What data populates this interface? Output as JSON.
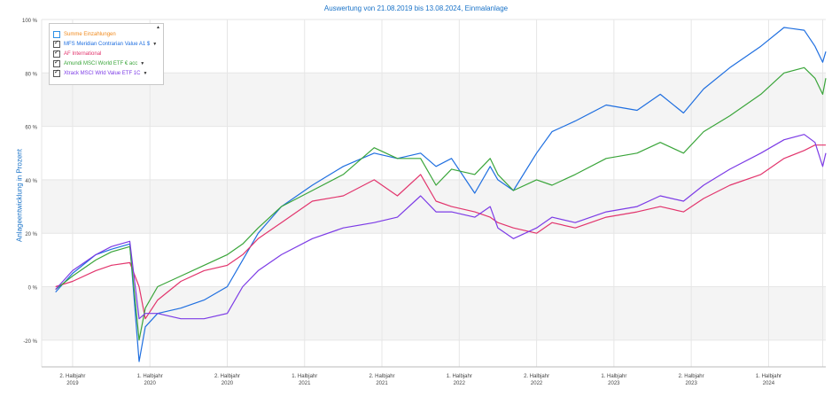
{
  "title": "Auswertung von 21.08.2019 bis 13.08.2024, Einmalanlage",
  "colors": {
    "blue": "#1f6fe0",
    "green": "#3aa53a",
    "pink": "#e2356d",
    "purple": "#7c3be6",
    "orange": "#f08a1c",
    "grid": "#e6e6e6",
    "band": "#f4f4f4"
  },
  "legend": [
    {
      "label": "Summe Einzahlungen",
      "checked": false,
      "dropdown": false,
      "color": "#f08a1c"
    },
    {
      "label": "MFS Meridian Contrarian Value A1 $",
      "checked": true,
      "dropdown": true,
      "color": "#1f6fe0"
    },
    {
      "label": "AF International",
      "checked": true,
      "dropdown": false,
      "color": "#e2356d"
    },
    {
      "label": "Amundi MSCI World ETF € acc",
      "checked": true,
      "dropdown": true,
      "color": "#3aa53a"
    },
    {
      "label": "Xtrack MSCI Wrld Value ETF 1C",
      "checked": true,
      "dropdown": true,
      "color": "#7c3be6"
    }
  ],
  "chart_data": {
    "type": "line",
    "title": "Auswertung von 21.08.2019 bis 13.08.2024, Einmalanlage",
    "xlabel": "",
    "ylabel": "Anlageentwicklung in Prozent",
    "ylim": [
      -30,
      100
    ],
    "yticks": [
      "100 %",
      "80 %",
      "60 %",
      "40 %",
      "20 %",
      "0 %",
      "-20 %"
    ],
    "ytick_values": [
      100,
      80,
      60,
      40,
      20,
      0,
      -20
    ],
    "xtick_labels": [
      [
        "2. Halbjahr",
        "2019"
      ],
      [
        "1. Halbjahr",
        "2020"
      ],
      [
        "2. Halbjahr",
        "2020"
      ],
      [
        "1. Halbjahr",
        "2021"
      ],
      [
        "2. Halbjahr",
        "2021"
      ],
      [
        "1. Halbjahr",
        "2022"
      ],
      [
        "2. Halbjahr",
        "2022"
      ],
      [
        "1. Halbjahr",
        "2023"
      ],
      [
        "2. Halbjahr",
        "2023"
      ],
      [
        "1. Halbjahr",
        "2024"
      ]
    ],
    "grid": true,
    "legend_position": "top-left",
    "x": [
      2019.64,
      2019.75,
      2019.9,
      2020.0,
      2020.12,
      2020.18,
      2020.22,
      2020.3,
      2020.45,
      2020.6,
      2020.75,
      2020.85,
      2020.95,
      2021.1,
      2021.3,
      2021.5,
      2021.7,
      2021.85,
      2022.0,
      2022.1,
      2022.2,
      2022.35,
      2022.45,
      2022.5,
      2022.6,
      2022.75,
      2022.85,
      2023.0,
      2023.2,
      2023.4,
      2023.55,
      2023.7,
      2023.83,
      2024.0,
      2024.2,
      2024.35,
      2024.48,
      2024.55,
      2024.6,
      2024.62
    ],
    "series": [
      {
        "name": "MFS Meridian Contrarian Value A1 $",
        "color": "#1f6fe0",
        "values": [
          -2,
          5,
          12,
          14,
          16,
          -28,
          -15,
          -10,
          -8,
          -5,
          0,
          10,
          20,
          30,
          38,
          45,
          50,
          48,
          50,
          45,
          48,
          35,
          45,
          40,
          36,
          50,
          58,
          62,
          68,
          66,
          72,
          65,
          74,
          82,
          90,
          97,
          96,
          90,
          84,
          88
        ]
      },
      {
        "name": "AF International",
        "color": "#e2356d",
        "values": [
          0,
          2,
          6,
          8,
          9,
          0,
          -12,
          -5,
          2,
          6,
          8,
          12,
          18,
          24,
          32,
          34,
          40,
          34,
          42,
          32,
          30,
          28,
          26,
          24,
          22,
          20,
          24,
          22,
          26,
          28,
          30,
          28,
          33,
          38,
          42,
          48,
          51,
          53,
          53,
          53
        ]
      },
      {
        "name": "Amundi MSCI World ETF € acc",
        "color": "#3aa53a",
        "values": [
          -1,
          4,
          10,
          13,
          15,
          -20,
          -8,
          0,
          4,
          8,
          12,
          16,
          22,
          30,
          36,
          42,
          52,
          48,
          48,
          38,
          44,
          42,
          48,
          42,
          36,
          40,
          38,
          42,
          48,
          50,
          54,
          50,
          58,
          64,
          72,
          80,
          82,
          78,
          72,
          78
        ]
      },
      {
        "name": "Xtrack MSCI Wrld Value ETF 1C",
        "color": "#7c3be6",
        "values": [
          -1,
          6,
          12,
          15,
          17,
          -12,
          -10,
          -10,
          -12,
          -12,
          -10,
          0,
          6,
          12,
          18,
          22,
          24,
          26,
          34,
          28,
          28,
          26,
          30,
          22,
          18,
          22,
          26,
          24,
          28,
          30,
          34,
          32,
          38,
          44,
          50,
          55,
          57,
          54,
          45,
          50
        ]
      }
    ]
  }
}
